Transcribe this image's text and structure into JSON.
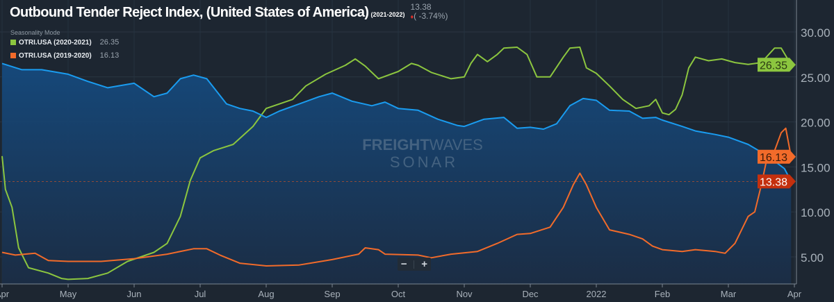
{
  "title": "Outbound Tender Reject Index, (United States of America)",
  "title_period": "(2021-2022)",
  "current": {
    "value": "13.38",
    "change": "( -3.74%)",
    "direction": "down"
  },
  "seasonality_label": "Seasonality Mode",
  "legend": [
    {
      "name": "OTRI.USA (2020-2021)",
      "value": "26.35",
      "color": "#8cc63f"
    },
    {
      "name": "OTRI.USA (2019-2020)",
      "value": "16.13",
      "color": "#f26b2a"
    }
  ],
  "watermark": {
    "brand1": "FREIGHT",
    "brand2": "WAVES",
    "product": "SONAR"
  },
  "zoom_controls": {
    "minus": "−",
    "plus": "+"
  },
  "colors": {
    "main": "#1a9cf0",
    "green": "#8cc63f",
    "orange": "#f26b2a",
    "current_tag": "#c4300e",
    "background": "#1d2631"
  },
  "chart_data": {
    "type": "line",
    "title": "Outbound Tender Reject Index, (United States of America)",
    "x_unit": "months since Apr 2021",
    "xticks": [
      "Apr",
      "May",
      "Jun",
      "Jul",
      "Aug",
      "Sep",
      "Oct",
      "Nov",
      "Dec",
      "2022",
      "Feb",
      "Mar",
      "Apr"
    ],
    "yticks": [
      "5.00",
      "10.00",
      "15.00",
      "20.00",
      "25.00",
      "30.00"
    ],
    "ylim": [
      2,
      32.5
    ],
    "grid": true,
    "last_labels": [
      "26.35",
      "16.13",
      "13.38"
    ],
    "series": [
      {
        "name": "OTRI.USA (2021-2022)",
        "color": "#1a9cf0",
        "area": true,
        "points": [
          [
            0,
            26.5
          ],
          [
            0.3,
            25.8
          ],
          [
            0.6,
            25.8
          ],
          [
            1,
            25.3
          ],
          [
            1.3,
            24.5
          ],
          [
            1.6,
            23.8
          ],
          [
            2,
            24.3
          ],
          [
            2.3,
            22.8
          ],
          [
            2.5,
            23.2
          ],
          [
            2.7,
            24.8
          ],
          [
            2.9,
            25.2
          ],
          [
            3.1,
            24.8
          ],
          [
            3.4,
            22
          ],
          [
            3.6,
            21.5
          ],
          [
            3.8,
            21.2
          ],
          [
            4,
            20.5
          ],
          [
            4.2,
            21.2
          ],
          [
            4.5,
            22
          ],
          [
            4.8,
            22.8
          ],
          [
            5,
            23.2
          ],
          [
            5.3,
            22.3
          ],
          [
            5.6,
            21.8
          ],
          [
            5.8,
            22.2
          ],
          [
            6,
            21.5
          ],
          [
            6.3,
            21.3
          ],
          [
            6.6,
            20.3
          ],
          [
            6.9,
            19.6
          ],
          [
            7,
            19.5
          ],
          [
            7.3,
            20.3
          ],
          [
            7.6,
            20.5
          ],
          [
            7.8,
            19.3
          ],
          [
            8,
            19.4
          ],
          [
            8.2,
            19.2
          ],
          [
            8.4,
            19.8
          ],
          [
            8.6,
            21.8
          ],
          [
            8.8,
            22.6
          ],
          [
            9,
            22.4
          ],
          [
            9.2,
            21.3
          ],
          [
            9.5,
            21.2
          ],
          [
            9.7,
            20.4
          ],
          [
            9.9,
            20.5
          ],
          [
            10,
            20.2
          ],
          [
            10.3,
            19.5
          ],
          [
            10.5,
            19
          ],
          [
            10.8,
            18.6
          ],
          [
            11,
            18.3
          ],
          [
            11.3,
            17.5
          ],
          [
            11.6,
            16.2
          ],
          [
            11.85,
            14.8
          ],
          [
            11.95,
            13.38
          ]
        ]
      },
      {
        "name": "OTRI.USA (2020-2021)",
        "color": "#8cc63f",
        "points": [
          [
            0,
            16.2
          ],
          [
            0.05,
            12.5
          ],
          [
            0.15,
            10.5
          ],
          [
            0.25,
            6
          ],
          [
            0.4,
            3.8
          ],
          [
            0.7,
            3.2
          ],
          [
            0.9,
            2.6
          ],
          [
            1,
            2.5
          ],
          [
            1.3,
            2.6
          ],
          [
            1.6,
            3.2
          ],
          [
            1.9,
            4.5
          ],
          [
            2.1,
            5
          ],
          [
            2.3,
            5.5
          ],
          [
            2.5,
            6.5
          ],
          [
            2.7,
            9.5
          ],
          [
            2.85,
            13.5
          ],
          [
            3,
            16
          ],
          [
            3.2,
            16.8
          ],
          [
            3.5,
            17.5
          ],
          [
            3.8,
            19.5
          ],
          [
            4,
            21.5
          ],
          [
            4.2,
            22
          ],
          [
            4.4,
            22.5
          ],
          [
            4.6,
            24
          ],
          [
            4.9,
            25.3
          ],
          [
            5.2,
            26.3
          ],
          [
            5.35,
            27
          ],
          [
            5.5,
            26.2
          ],
          [
            5.7,
            24.8
          ],
          [
            6,
            25.6
          ],
          [
            6.2,
            26.5
          ],
          [
            6.3,
            26.3
          ],
          [
            6.5,
            25.5
          ],
          [
            6.8,
            24.8
          ],
          [
            7,
            25
          ],
          [
            7.1,
            26.5
          ],
          [
            7.2,
            27.5
          ],
          [
            7.35,
            26.7
          ],
          [
            7.5,
            27.5
          ],
          [
            7.6,
            28.2
          ],
          [
            7.8,
            28.3
          ],
          [
            7.95,
            27.5
          ],
          [
            8.1,
            25
          ],
          [
            8.3,
            25
          ],
          [
            8.5,
            27.2
          ],
          [
            8.6,
            28.2
          ],
          [
            8.75,
            28.3
          ],
          [
            8.85,
            26
          ],
          [
            9,
            25.4
          ],
          [
            9.2,
            24
          ],
          [
            9.4,
            22.5
          ],
          [
            9.6,
            21.5
          ],
          [
            9.8,
            21.8
          ],
          [
            9.9,
            22.5
          ],
          [
            10,
            21
          ],
          [
            10.1,
            20.8
          ],
          [
            10.2,
            21.4
          ],
          [
            10.3,
            23
          ],
          [
            10.4,
            26
          ],
          [
            10.5,
            27.2
          ],
          [
            10.7,
            26.8
          ],
          [
            10.9,
            27
          ],
          [
            11.1,
            26.6
          ],
          [
            11.3,
            26.4
          ],
          [
            11.5,
            26.6
          ],
          [
            11.7,
            28.2
          ],
          [
            11.8,
            28.2
          ],
          [
            11.95,
            26.35
          ]
        ]
      },
      {
        "name": "OTRI.USA (2019-2020)",
        "color": "#f26b2a",
        "points": [
          [
            0,
            5.5
          ],
          [
            0.2,
            5.2
          ],
          [
            0.5,
            5.4
          ],
          [
            0.7,
            4.6
          ],
          [
            1,
            4.5
          ],
          [
            1.5,
            4.5
          ],
          [
            2,
            4.8
          ],
          [
            2.5,
            5.3
          ],
          [
            2.9,
            5.9
          ],
          [
            3.1,
            5.9
          ],
          [
            3.3,
            5.2
          ],
          [
            3.6,
            4.3
          ],
          [
            4,
            4
          ],
          [
            4.5,
            4.1
          ],
          [
            5,
            4.7
          ],
          [
            5.4,
            5.3
          ],
          [
            5.5,
            6
          ],
          [
            5.7,
            5.8
          ],
          [
            5.8,
            5.3
          ],
          [
            6.3,
            5.2
          ],
          [
            6.5,
            4.9
          ],
          [
            6.8,
            5.3
          ],
          [
            7.2,
            5.6
          ],
          [
            7.5,
            6.5
          ],
          [
            7.8,
            7.5
          ],
          [
            8,
            7.6
          ],
          [
            8.3,
            8.3
          ],
          [
            8.5,
            10.5
          ],
          [
            8.65,
            13
          ],
          [
            8.75,
            14.3
          ],
          [
            8.85,
            13
          ],
          [
            9,
            10.5
          ],
          [
            9.2,
            8
          ],
          [
            9.5,
            7.5
          ],
          [
            9.7,
            7
          ],
          [
            9.85,
            6.2
          ],
          [
            10,
            5.8
          ],
          [
            10.3,
            5.6
          ],
          [
            10.5,
            5.8
          ],
          [
            10.8,
            5.6
          ],
          [
            10.95,
            5.4
          ],
          [
            11.1,
            6.5
          ],
          [
            11.3,
            9.5
          ],
          [
            11.4,
            10
          ],
          [
            11.5,
            13
          ],
          [
            11.6,
            16.5
          ],
          [
            11.7,
            16.8
          ],
          [
            11.8,
            18.8
          ],
          [
            11.87,
            19.3
          ],
          [
            11.95,
            16.13
          ]
        ]
      }
    ]
  }
}
